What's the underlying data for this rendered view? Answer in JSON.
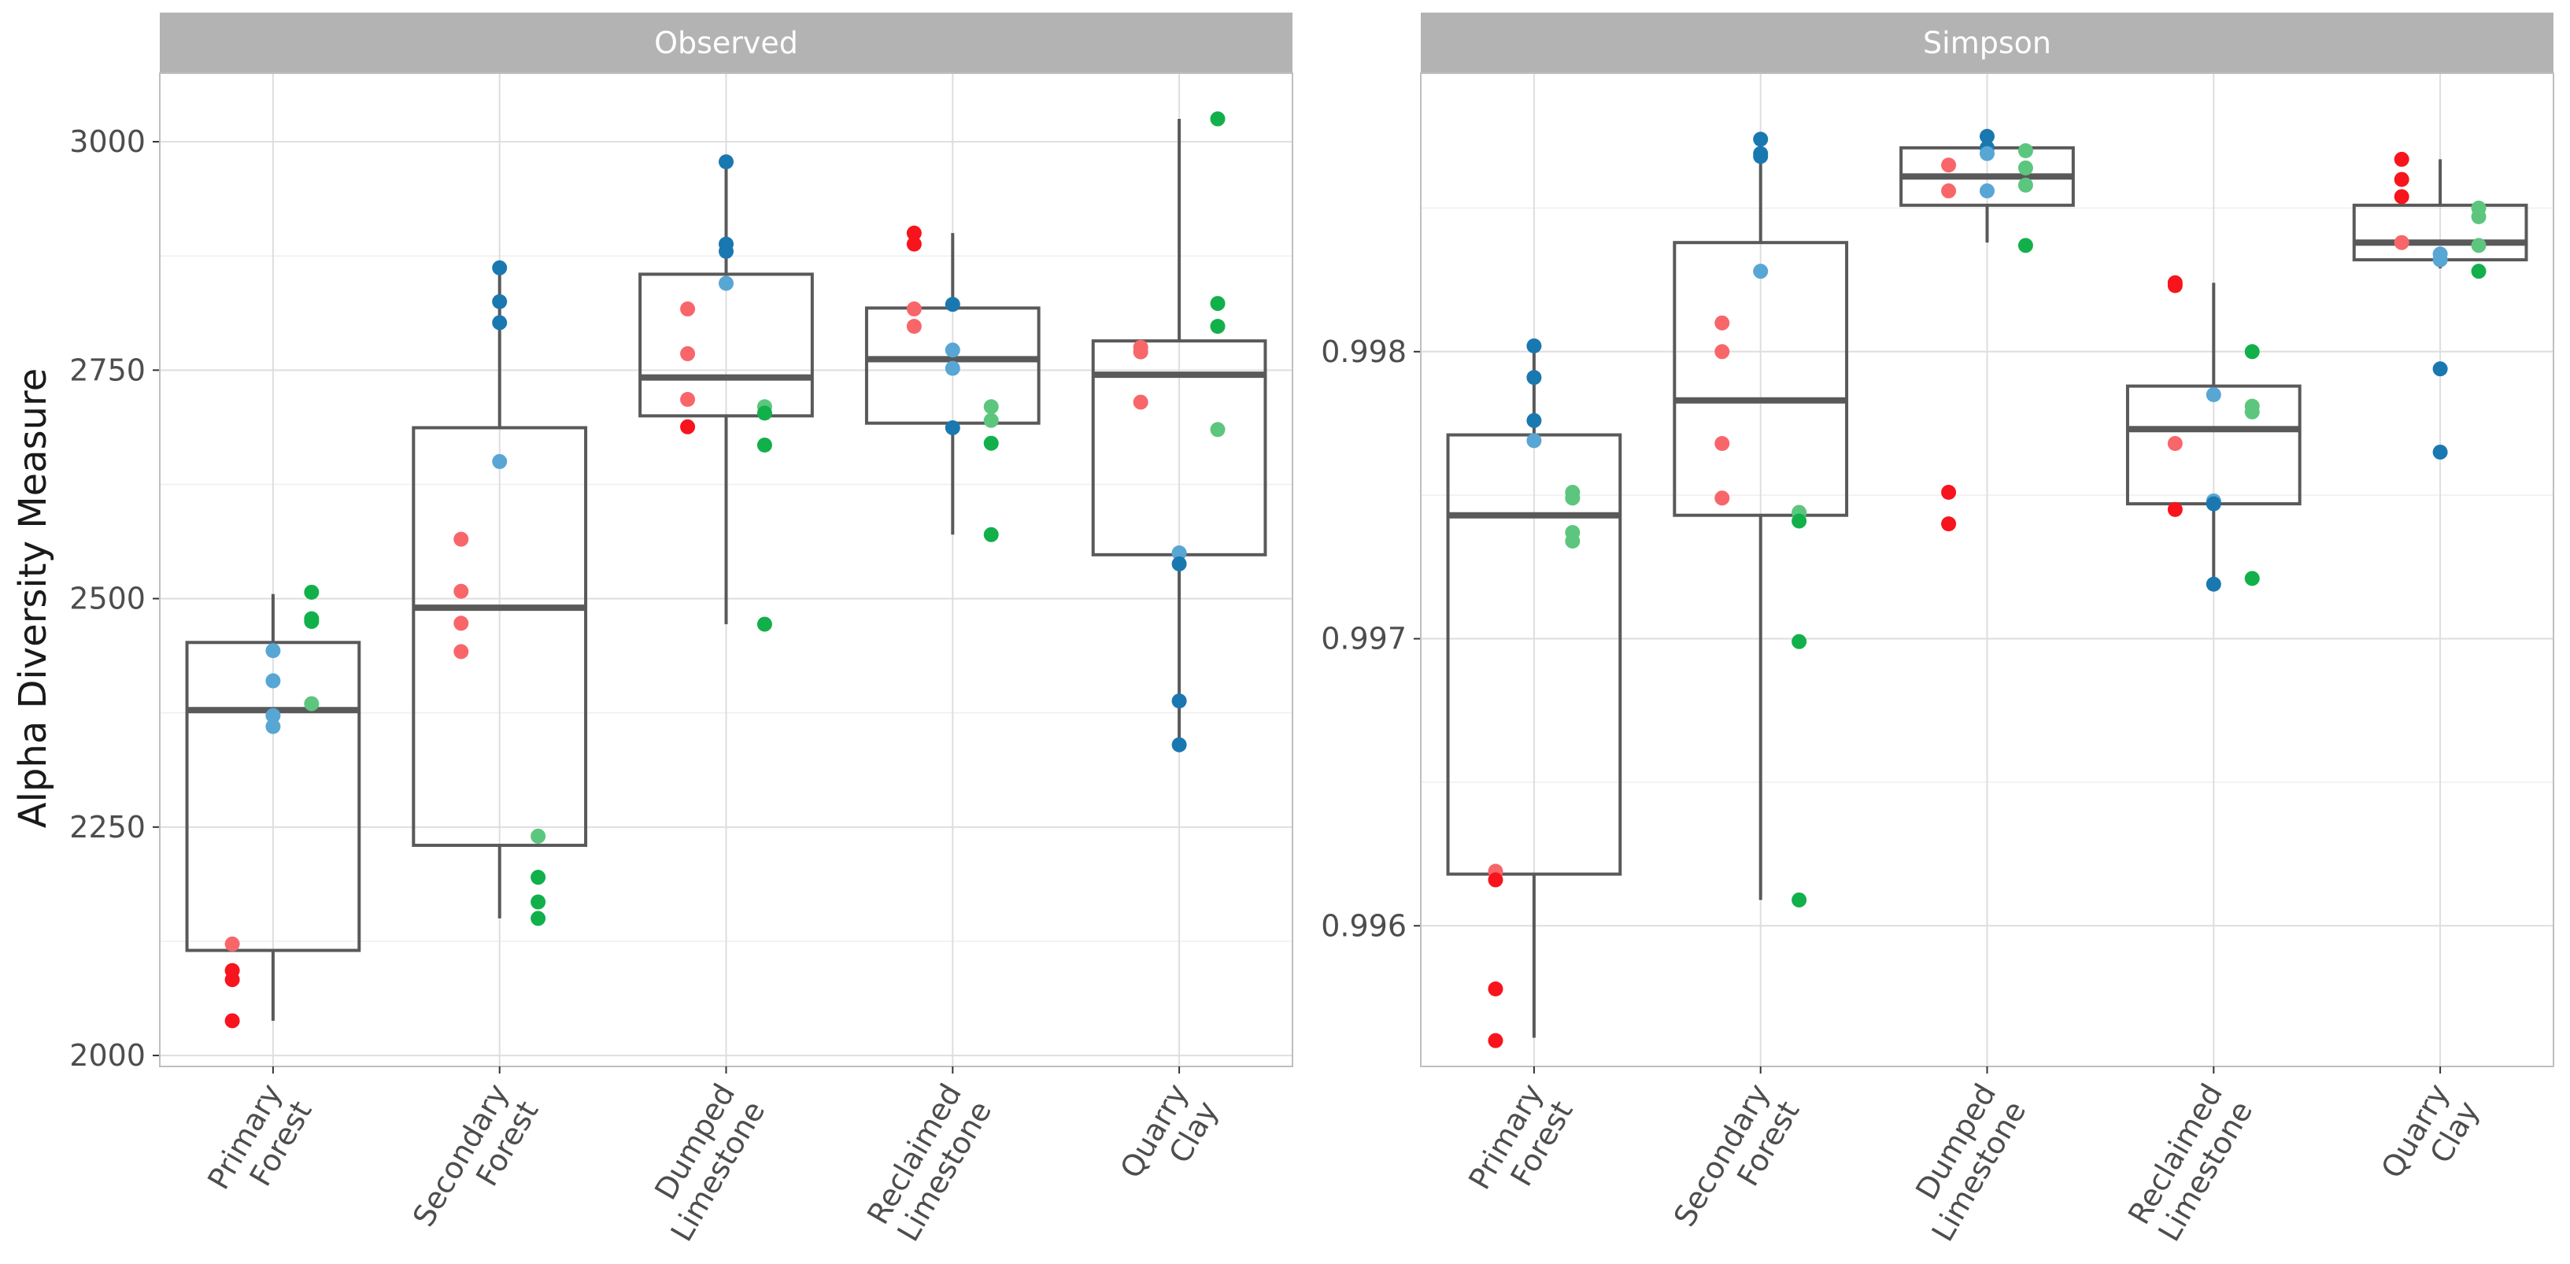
{
  "chart_data": {
    "type": "boxplot",
    "ylabel": "Alpha Diversity Measure",
    "xlabel": "",
    "colors": {
      "red": "#f8141c",
      "light_red": "#f8666a",
      "blue": "#1a78b0",
      "light_blue": "#58a6d4",
      "green": "#12b04a",
      "light_green": "#5cc67e",
      "box_line": "#595959",
      "strip_bg": "#b3b3b3",
      "grid_major": "#dedede",
      "grid_minor": "#efefef",
      "panel_border": "#bfbfbf"
    },
    "categories": [
      {
        "line1": "Primary",
        "line2": "Forest"
      },
      {
        "line1": "Secondary",
        "line2": "Forest"
      },
      {
        "line1": "Dumped",
        "line2": "Limestone"
      },
      {
        "line1": "Reclaimed",
        "line2": "Limestone"
      },
      {
        "line1": "Quarry",
        "line2": "Clay"
      }
    ],
    "panels": [
      {
        "title": "Observed",
        "ylim": [
          1988,
          3075
        ],
        "yticks": [
          2000,
          2250,
          2500,
          2750,
          3000
        ],
        "yticklabels": [
          "2000",
          "2250",
          "2500",
          "2750",
          "3000"
        ],
        "minor_ticks": [
          2125,
          2375,
          2625,
          2875
        ],
        "boxes": [
          {
            "min": 2038,
            "q1": 2115,
            "median": 2378,
            "q3": 2452,
            "max": 2505
          },
          {
            "min": 2150,
            "q1": 2230,
            "median": 2490,
            "q3": 2687,
            "max": 2862
          },
          {
            "min": 2472,
            "q1": 2700,
            "median": 2742,
            "q3": 2855,
            "max": 2978
          },
          {
            "min": 2570,
            "q1": 2692,
            "median": 2762,
            "q3": 2818,
            "max": 2900
          },
          {
            "min": 2340,
            "q1": 2548,
            "median": 2745,
            "q3": 2782,
            "max": 3025
          }
        ],
        "points": [
          {
            "group": 0,
            "dx": -0.18,
            "y": 2122,
            "color": "light_red"
          },
          {
            "group": 0,
            "dx": -0.18,
            "y": 2093,
            "color": "red"
          },
          {
            "group": 0,
            "dx": -0.18,
            "y": 2083,
            "color": "red"
          },
          {
            "group": 0,
            "dx": -0.18,
            "y": 2038,
            "color": "red"
          },
          {
            "group": 0,
            "dx": 0.0,
            "y": 2443,
            "color": "light_blue"
          },
          {
            "group": 0,
            "dx": 0.0,
            "y": 2410,
            "color": "light_blue"
          },
          {
            "group": 0,
            "dx": 0.0,
            "y": 2372,
            "color": "light_blue"
          },
          {
            "group": 0,
            "dx": 0.0,
            "y": 2360,
            "color": "light_blue"
          },
          {
            "group": 0,
            "dx": 0.17,
            "y": 2507,
            "color": "green"
          },
          {
            "group": 0,
            "dx": 0.17,
            "y": 2478,
            "color": "green"
          },
          {
            "group": 0,
            "dx": 0.17,
            "y": 2475,
            "color": "green"
          },
          {
            "group": 0,
            "dx": 0.17,
            "y": 2385,
            "color": "light_green"
          },
          {
            "group": 1,
            "dx": -0.17,
            "y": 2565,
            "color": "light_red"
          },
          {
            "group": 1,
            "dx": -0.17,
            "y": 2508,
            "color": "light_red"
          },
          {
            "group": 1,
            "dx": -0.17,
            "y": 2473,
            "color": "light_red"
          },
          {
            "group": 1,
            "dx": -0.17,
            "y": 2442,
            "color": "light_red"
          },
          {
            "group": 1,
            "dx": 0.0,
            "y": 2862,
            "color": "blue"
          },
          {
            "group": 1,
            "dx": 0.0,
            "y": 2825,
            "color": "blue"
          },
          {
            "group": 1,
            "dx": 0.0,
            "y": 2802,
            "color": "blue"
          },
          {
            "group": 1,
            "dx": 0.0,
            "y": 2650,
            "color": "light_blue"
          },
          {
            "group": 1,
            "dx": 0.17,
            "y": 2240,
            "color": "light_green"
          },
          {
            "group": 1,
            "dx": 0.17,
            "y": 2195,
            "color": "green"
          },
          {
            "group": 1,
            "dx": 0.17,
            "y": 2168,
            "color": "green"
          },
          {
            "group": 1,
            "dx": 0.17,
            "y": 2150,
            "color": "green"
          },
          {
            "group": 2,
            "dx": -0.17,
            "y": 2817,
            "color": "light_red"
          },
          {
            "group": 2,
            "dx": -0.17,
            "y": 2768,
            "color": "light_red"
          },
          {
            "group": 2,
            "dx": -0.17,
            "y": 2718,
            "color": "light_red"
          },
          {
            "group": 2,
            "dx": -0.17,
            "y": 2688,
            "color": "red"
          },
          {
            "group": 2,
            "dx": 0.0,
            "y": 2978,
            "color": "blue"
          },
          {
            "group": 2,
            "dx": 0.0,
            "y": 2888,
            "color": "blue"
          },
          {
            "group": 2,
            "dx": 0.0,
            "y": 2880,
            "color": "blue"
          },
          {
            "group": 2,
            "dx": 0.0,
            "y": 2845,
            "color": "light_blue"
          },
          {
            "group": 2,
            "dx": 0.17,
            "y": 2710,
            "color": "light_green"
          },
          {
            "group": 2,
            "dx": 0.17,
            "y": 2703,
            "color": "green"
          },
          {
            "group": 2,
            "dx": 0.17,
            "y": 2668,
            "color": "green"
          },
          {
            "group": 2,
            "dx": 0.17,
            "y": 2472,
            "color": "green"
          },
          {
            "group": 3,
            "dx": -0.17,
            "y": 2900,
            "color": "red"
          },
          {
            "group": 3,
            "dx": -0.17,
            "y": 2888,
            "color": "red"
          },
          {
            "group": 3,
            "dx": -0.17,
            "y": 2817,
            "color": "light_red"
          },
          {
            "group": 3,
            "dx": -0.17,
            "y": 2798,
            "color": "light_red"
          },
          {
            "group": 3,
            "dx": 0.0,
            "y": 2822,
            "color": "blue"
          },
          {
            "group": 3,
            "dx": 0.0,
            "y": 2772,
            "color": "light_blue"
          },
          {
            "group": 3,
            "dx": 0.0,
            "y": 2752,
            "color": "light_blue"
          },
          {
            "group": 3,
            "dx": 0.0,
            "y": 2687,
            "color": "blue"
          },
          {
            "group": 3,
            "dx": 0.17,
            "y": 2710,
            "color": "light_green"
          },
          {
            "group": 3,
            "dx": 0.17,
            "y": 2695,
            "color": "light_green"
          },
          {
            "group": 3,
            "dx": 0.17,
            "y": 2670,
            "color": "green"
          },
          {
            "group": 3,
            "dx": 0.17,
            "y": 2570,
            "color": "green"
          },
          {
            "group": 4,
            "dx": -0.17,
            "y": 2775,
            "color": "light_red"
          },
          {
            "group": 4,
            "dx": -0.17,
            "y": 2770,
            "color": "light_red"
          },
          {
            "group": 4,
            "dx": -0.17,
            "y": 2715,
            "color": "light_red"
          },
          {
            "group": 4,
            "dx": 0.0,
            "y": 2550,
            "color": "light_blue"
          },
          {
            "group": 4,
            "dx": 0.0,
            "y": 2538,
            "color": "blue"
          },
          {
            "group": 4,
            "dx": 0.0,
            "y": 2388,
            "color": "blue"
          },
          {
            "group": 4,
            "dx": 0.0,
            "y": 2340,
            "color": "blue"
          },
          {
            "group": 4,
            "dx": 0.17,
            "y": 3025,
            "color": "green"
          },
          {
            "group": 4,
            "dx": 0.17,
            "y": 2823,
            "color": "green"
          },
          {
            "group": 4,
            "dx": 0.17,
            "y": 2798,
            "color": "green"
          },
          {
            "group": 4,
            "dx": 0.17,
            "y": 2685,
            "color": "light_green"
          }
        ]
      },
      {
        "title": "Simpson",
        "ylim": [
          0.99551,
          0.99897
        ],
        "yticks": [
          0.996,
          0.997,
          0.998
        ],
        "yticklabels": [
          "0.996",
          "0.997",
          "0.998"
        ],
        "minor_ticks": [
          0.9955,
          0.9965,
          0.9975,
          0.9985
        ],
        "boxes": [
          {
            "min": 0.99561,
            "q1": 0.99618,
            "median": 0.99743,
            "q3": 0.99771,
            "max": 0.99801
          },
          {
            "min": 0.99609,
            "q1": 0.99743,
            "median": 0.99783,
            "q3": 0.99838,
            "max": 0.99875
          },
          {
            "min": 0.99838,
            "q1": 0.99851,
            "median": 0.99861,
            "q3": 0.99871,
            "max": 0.99876
          },
          {
            "min": 0.99719,
            "q1": 0.99747,
            "median": 0.99773,
            "q3": 0.99788,
            "max": 0.99824
          },
          {
            "min": 0.99829,
            "q1": 0.99832,
            "median": 0.99838,
            "q3": 0.99851,
            "max": 0.99867
          }
        ],
        "points": [
          {
            "group": 0,
            "dx": -0.17,
            "y": 0.99619,
            "color": "light_red"
          },
          {
            "group": 0,
            "dx": -0.17,
            "y": 0.99616,
            "color": "red"
          },
          {
            "group": 0,
            "dx": -0.17,
            "y": 0.99578,
            "color": "red"
          },
          {
            "group": 0,
            "dx": -0.17,
            "y": 0.9956,
            "color": "red"
          },
          {
            "group": 0,
            "dx": 0.0,
            "y": 0.99802,
            "color": "blue"
          },
          {
            "group": 0,
            "dx": 0.0,
            "y": 0.99791,
            "color": "blue"
          },
          {
            "group": 0,
            "dx": 0.0,
            "y": 0.99776,
            "color": "blue"
          },
          {
            "group": 0,
            "dx": 0.0,
            "y": 0.99769,
            "color": "light_blue"
          },
          {
            "group": 0,
            "dx": 0.17,
            "y": 0.99751,
            "color": "light_green"
          },
          {
            "group": 0,
            "dx": 0.17,
            "y": 0.99749,
            "color": "light_green"
          },
          {
            "group": 0,
            "dx": 0.17,
            "y": 0.99737,
            "color": "light_green"
          },
          {
            "group": 0,
            "dx": 0.17,
            "y": 0.99734,
            "color": "light_green"
          },
          {
            "group": 1,
            "dx": -0.17,
            "y": 0.9981,
            "color": "light_red"
          },
          {
            "group": 1,
            "dx": -0.17,
            "y": 0.998,
            "color": "light_red"
          },
          {
            "group": 1,
            "dx": -0.17,
            "y": 0.99768,
            "color": "light_red"
          },
          {
            "group": 1,
            "dx": -0.17,
            "y": 0.99749,
            "color": "light_red"
          },
          {
            "group": 1,
            "dx": 0.0,
            "y": 0.99874,
            "color": "blue"
          },
          {
            "group": 1,
            "dx": 0.0,
            "y": 0.99869,
            "color": "blue"
          },
          {
            "group": 1,
            "dx": 0.0,
            "y": 0.99868,
            "color": "blue"
          },
          {
            "group": 1,
            "dx": 0.0,
            "y": 0.99828,
            "color": "light_blue"
          },
          {
            "group": 1,
            "dx": 0.17,
            "y": 0.99744,
            "color": "light_green"
          },
          {
            "group": 1,
            "dx": 0.17,
            "y": 0.99741,
            "color": "green"
          },
          {
            "group": 1,
            "dx": 0.17,
            "y": 0.99699,
            "color": "green"
          },
          {
            "group": 1,
            "dx": 0.17,
            "y": 0.99609,
            "color": "green"
          },
          {
            "group": 2,
            "dx": -0.17,
            "y": 0.99865,
            "color": "light_red"
          },
          {
            "group": 2,
            "dx": -0.17,
            "y": 0.99856,
            "color": "light_red"
          },
          {
            "group": 2,
            "dx": -0.17,
            "y": 0.99751,
            "color": "red"
          },
          {
            "group": 2,
            "dx": -0.17,
            "y": 0.9974,
            "color": "red"
          },
          {
            "group": 2,
            "dx": 0.0,
            "y": 0.99875,
            "color": "blue"
          },
          {
            "group": 2,
            "dx": 0.0,
            "y": 0.99871,
            "color": "blue"
          },
          {
            "group": 2,
            "dx": 0.0,
            "y": 0.99869,
            "color": "light_blue"
          },
          {
            "group": 2,
            "dx": 0.0,
            "y": 0.99856,
            "color": "light_blue"
          },
          {
            "group": 2,
            "dx": 0.17,
            "y": 0.9987,
            "color": "light_green"
          },
          {
            "group": 2,
            "dx": 0.17,
            "y": 0.99864,
            "color": "light_green"
          },
          {
            "group": 2,
            "dx": 0.17,
            "y": 0.99858,
            "color": "light_green"
          },
          {
            "group": 2,
            "dx": 0.17,
            "y": 0.99837,
            "color": "green"
          },
          {
            "group": 3,
            "dx": -0.17,
            "y": 0.99824,
            "color": "red"
          },
          {
            "group": 3,
            "dx": -0.17,
            "y": 0.99823,
            "color": "red"
          },
          {
            "group": 3,
            "dx": -0.17,
            "y": 0.99768,
            "color": "light_red"
          },
          {
            "group": 3,
            "dx": -0.17,
            "y": 0.99745,
            "color": "red"
          },
          {
            "group": 3,
            "dx": 0.0,
            "y": 0.99785,
            "color": "light_blue"
          },
          {
            "group": 3,
            "dx": 0.0,
            "y": 0.99748,
            "color": "light_blue"
          },
          {
            "group": 3,
            "dx": 0.0,
            "y": 0.99747,
            "color": "blue"
          },
          {
            "group": 3,
            "dx": 0.0,
            "y": 0.99719,
            "color": "blue"
          },
          {
            "group": 3,
            "dx": 0.17,
            "y": 0.998,
            "color": "green"
          },
          {
            "group": 3,
            "dx": 0.17,
            "y": 0.99781,
            "color": "light_green"
          },
          {
            "group": 3,
            "dx": 0.17,
            "y": 0.99779,
            "color": "light_green"
          },
          {
            "group": 3,
            "dx": 0.17,
            "y": 0.99721,
            "color": "green"
          },
          {
            "group": 4,
            "dx": -0.17,
            "y": 0.99867,
            "color": "red"
          },
          {
            "group": 4,
            "dx": -0.17,
            "y": 0.9986,
            "color": "red"
          },
          {
            "group": 4,
            "dx": -0.17,
            "y": 0.99854,
            "color": "red"
          },
          {
            "group": 4,
            "dx": -0.17,
            "y": 0.99838,
            "color": "light_red"
          },
          {
            "group": 4,
            "dx": 0.0,
            "y": 0.99834,
            "color": "light_blue"
          },
          {
            "group": 4,
            "dx": 0.0,
            "y": 0.99832,
            "color": "light_blue"
          },
          {
            "group": 4,
            "dx": 0.0,
            "y": 0.99794,
            "color": "blue"
          },
          {
            "group": 4,
            "dx": 0.0,
            "y": 0.99765,
            "color": "blue"
          },
          {
            "group": 4,
            "dx": 0.17,
            "y": 0.9985,
            "color": "light_green"
          },
          {
            "group": 4,
            "dx": 0.17,
            "y": 0.99847,
            "color": "light_green"
          },
          {
            "group": 4,
            "dx": 0.17,
            "y": 0.99837,
            "color": "light_green"
          },
          {
            "group": 4,
            "dx": 0.17,
            "y": 0.99828,
            "color": "green"
          }
        ]
      }
    ]
  }
}
